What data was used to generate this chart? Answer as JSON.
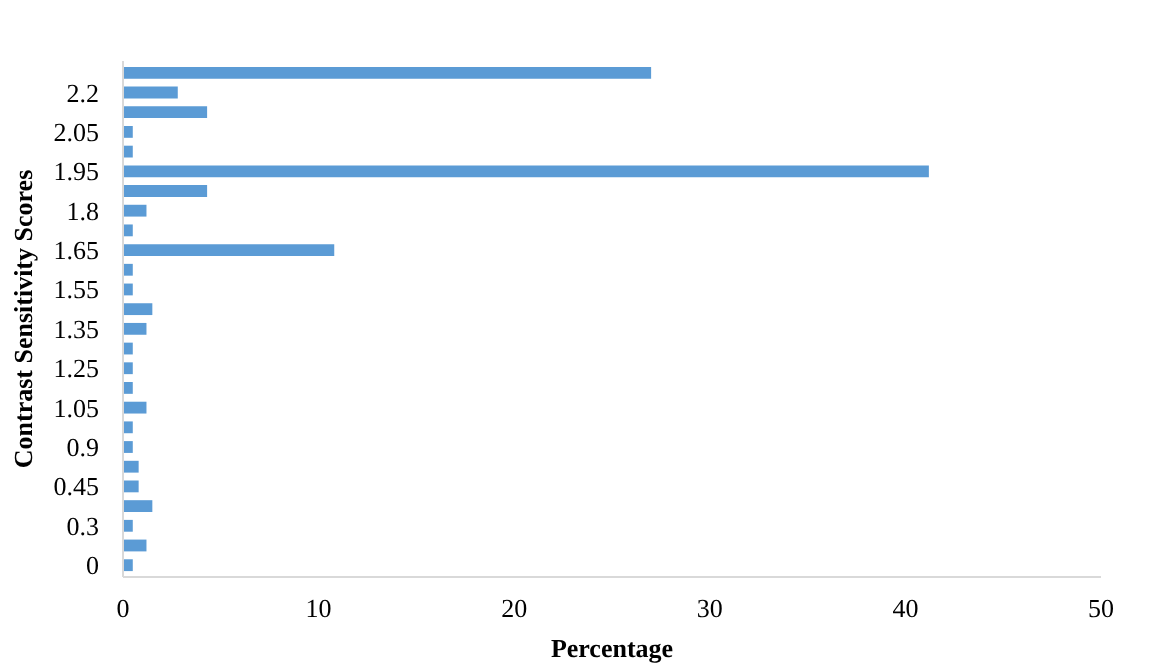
{
  "chart_data": {
    "type": "bar",
    "orientation": "horizontal",
    "xlabel": "Percentage",
    "ylabel": "Contrast Sensitivity Scores",
    "categories": [
      null,
      "2.2",
      null,
      "2.05",
      null,
      "1.95",
      null,
      "1.8",
      null,
      "1.65",
      null,
      "1.55",
      null,
      "1.35",
      null,
      "1.25",
      null,
      "1.05",
      null,
      "0.9",
      null,
      "0.45",
      null,
      "0.3",
      null,
      "0"
    ],
    "values": [
      27.0,
      2.8,
      4.3,
      0.5,
      0.5,
      41.2,
      4.3,
      1.2,
      0.5,
      10.8,
      0.5,
      0.5,
      1.5,
      1.2,
      0.5,
      0.5,
      0.5,
      1.2,
      0.5,
      0.5,
      0.8,
      0.8,
      1.5,
      0.5,
      1.2,
      0.5
    ],
    "color": "#5b9bd5",
    "xlim": [
      0,
      50
    ],
    "xticks": [
      0,
      10,
      20,
      30,
      40,
      50
    ],
    "grid": false
  }
}
